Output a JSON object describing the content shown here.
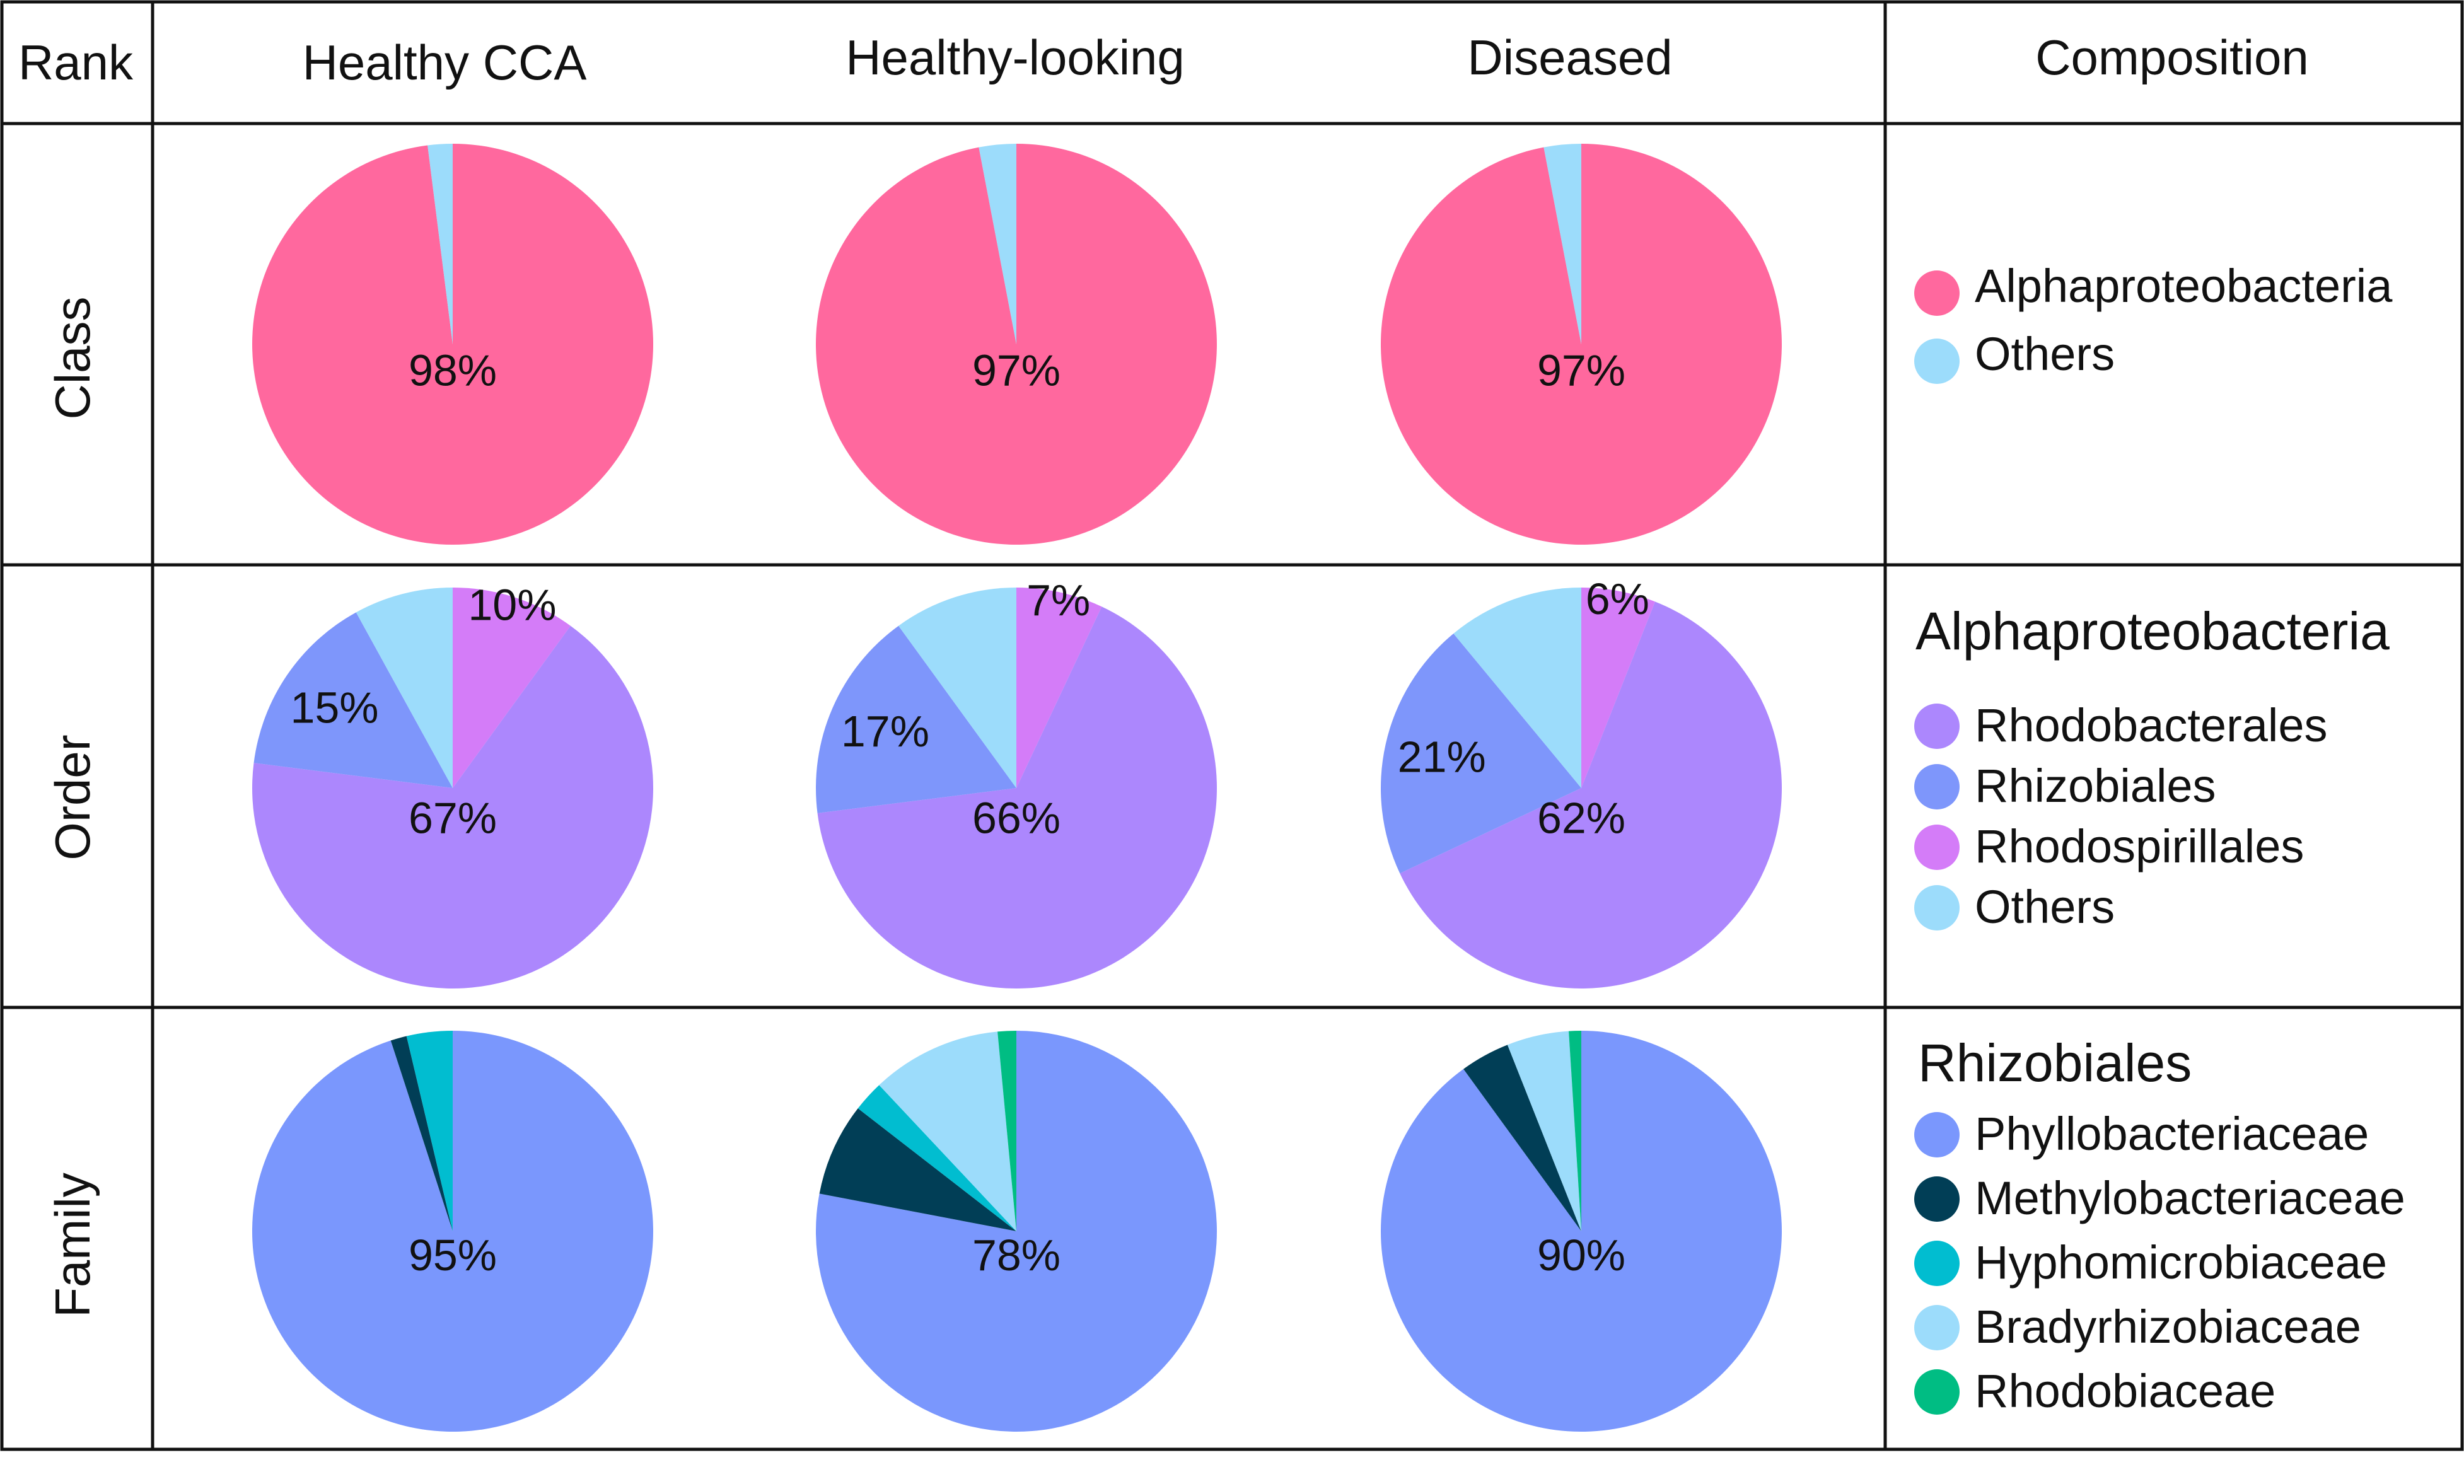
{
  "header": {
    "rank": "Rank",
    "columns": [
      "Healthy CCA",
      "Healthy-looking",
      "Diseased"
    ],
    "composition": "Composition"
  },
  "chart_data": [
    {
      "type": "pie",
      "rank": "Class",
      "title": "",
      "categories": [
        "Alphaproteobacteria",
        "Others"
      ],
      "colors": [
        "#ff689e",
        "#9cdcfb"
      ],
      "series": [
        {
          "name": "Healthy CCA",
          "values": [
            98,
            2
          ],
          "labels": [
            "98%",
            ""
          ]
        },
        {
          "name": "Healthy-looking",
          "values": [
            97,
            3
          ],
          "labels": [
            "97%",
            ""
          ]
        },
        {
          "name": "Diseased",
          "values": [
            97,
            3
          ],
          "labels": [
            "97%",
            ""
          ]
        }
      ],
      "legend_title": ""
    },
    {
      "type": "pie",
      "rank": "Order",
      "categories": [
        "Rhodobacterales",
        "Rhizobiales",
        "Rhodospirillales",
        "Others"
      ],
      "colors": [
        "#ac87fd",
        "#7e96fb",
        "#d47cf8",
        "#9cdcfb"
      ],
      "plot_order": [
        2,
        0,
        1,
        3
      ],
      "series": [
        {
          "name": "Healthy CCA",
          "values": [
            67,
            15,
            10,
            8
          ],
          "labels": [
            "67%",
            "15%",
            "10%",
            ""
          ]
        },
        {
          "name": "Healthy-looking",
          "values": [
            66,
            17,
            7,
            10
          ],
          "labels": [
            "66%",
            "17%",
            "7%",
            ""
          ]
        },
        {
          "name": "Diseased",
          "values": [
            62,
            21,
            6,
            11
          ],
          "labels": [
            "62%",
            "21%",
            "6%",
            ""
          ]
        }
      ],
      "legend_title": "Alphaproteobacteria"
    },
    {
      "type": "pie",
      "rank": "Family",
      "categories": [
        "Phyllobacteriaceae",
        "Methylobacteriaceae",
        "Hyphomicrobiaceae",
        "Bradyrhizobiaceae",
        "Rhodobiaceae"
      ],
      "colors": [
        "#7a97fd",
        "#013e56",
        "#01bdd0",
        "#9cdcfb",
        "#00bd83"
      ],
      "series": [
        {
          "name": "Healthy CCA",
          "values": [
            95,
            1.3,
            3.7,
            0,
            0
          ],
          "labels": [
            "95%",
            "",
            "",
            "",
            ""
          ]
        },
        {
          "name": "Healthy-looking",
          "values": [
            78,
            7.5,
            2.5,
            10.5,
            1.5
          ],
          "labels": [
            "78%",
            "",
            "",
            "",
            ""
          ]
        },
        {
          "name": "Diseased",
          "values": [
            90,
            4,
            0,
            5,
            1
          ],
          "labels": [
            "90%",
            "",
            "",
            "",
            ""
          ]
        }
      ],
      "legend_title": "Rhizobiales"
    }
  ]
}
